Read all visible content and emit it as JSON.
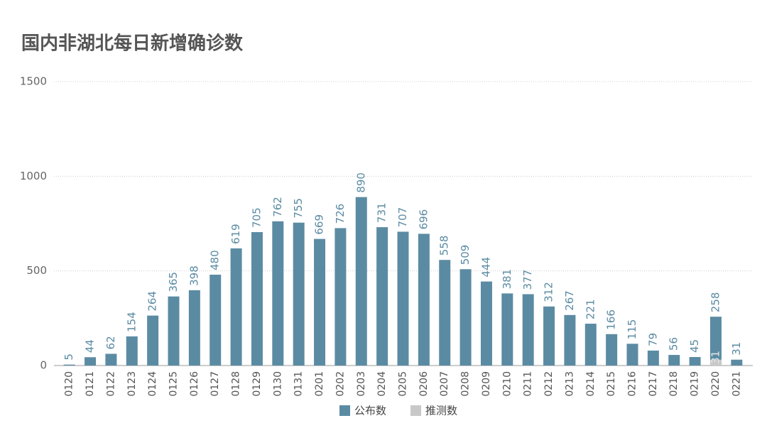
{
  "chart_data": {
    "type": "bar",
    "title": "国内非湖北每日新增确诊数",
    "categories": [
      "0120",
      "0121",
      "0122",
      "0123",
      "0124",
      "0125",
      "0126",
      "0127",
      "0128",
      "0129",
      "0130",
      "0131",
      "0201",
      "0202",
      "0203",
      "0204",
      "0205",
      "0206",
      "0207",
      "0208",
      "0209",
      "0210",
      "0211",
      "0212",
      "0213",
      "0214",
      "0215",
      "0216",
      "0217",
      "0218",
      "0219",
      "0220",
      "0221"
    ],
    "series": [
      {
        "name": "公布数",
        "color": "#5b8ba3",
        "values": [
          5,
          44,
          62,
          154,
          264,
          365,
          398,
          480,
          619,
          705,
          762,
          755,
          669,
          726,
          890,
          731,
          707,
          696,
          558,
          509,
          444,
          381,
          377,
          312,
          267,
          221,
          166,
          115,
          79,
          56,
          45,
          258,
          31
        ]
      },
      {
        "name": "推测数",
        "color": "#c8c8c8",
        "values": [
          null,
          null,
          null,
          null,
          null,
          null,
          null,
          null,
          null,
          null,
          null,
          null,
          null,
          null,
          null,
          null,
          null,
          null,
          null,
          null,
          null,
          null,
          null,
          null,
          null,
          null,
          null,
          null,
          null,
          null,
          null,
          31,
          null
        ]
      }
    ],
    "ylim": [
      0,
      1500
    ],
    "yticks": [
      0,
      500,
      1000,
      1500
    ],
    "grid": true,
    "legend": "bottom"
  }
}
